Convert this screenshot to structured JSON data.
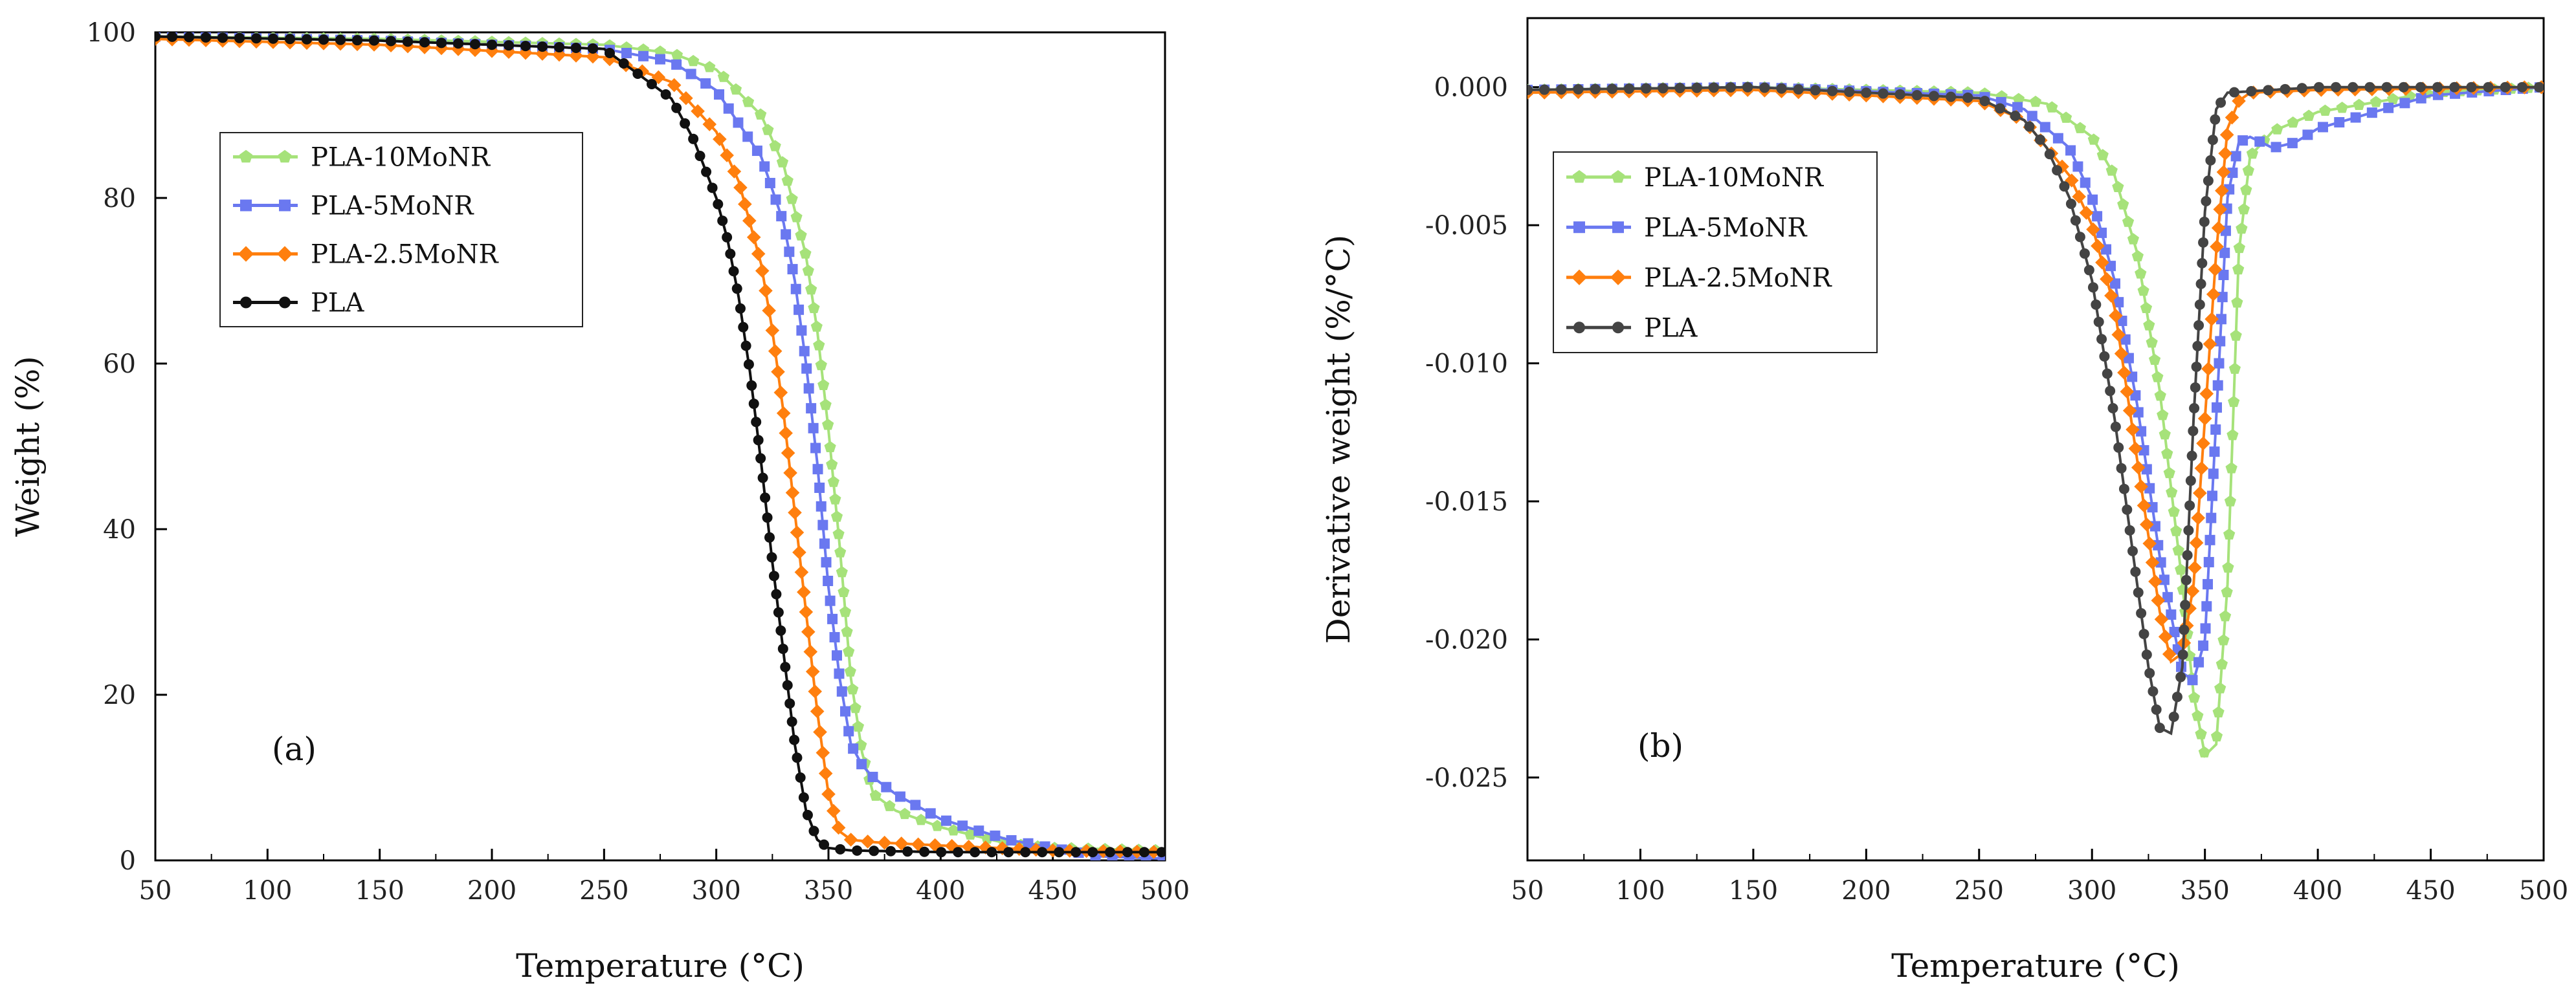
{
  "chart_data": [
    {
      "type": "line",
      "panel_label": "(a)",
      "xlabel": "Temperature (°C)",
      "ylabel": "Weight (%)",
      "xlim": [
        50,
        500
      ],
      "ylim": [
        0,
        100
      ],
      "xticks": [
        50,
        100,
        150,
        200,
        250,
        300,
        350,
        400,
        450,
        500
      ],
      "yticks": [
        0,
        20,
        40,
        60,
        80,
        100
      ],
      "ytick_labels": [
        "0",
        "20",
        "40",
        "60",
        "80",
        "100"
      ],
      "legend_position": "upper-left",
      "series": [
        {
          "name": "PLA-10MoNR",
          "color": "#a6e27a",
          "marker": "pentagon",
          "x": [
            50,
            150,
            250,
            280,
            300,
            320,
            330,
            340,
            345,
            350,
            355,
            360,
            365,
            370,
            380,
            400,
            430,
            450,
            500
          ],
          "y": [
            99.5,
            99.2,
            98.5,
            97.5,
            95.5,
            90,
            84,
            73,
            64,
            52,
            38,
            22,
            13,
            8,
            6,
            4,
            2,
            1.5,
            1.2
          ]
        },
        {
          "name": "PLA-5MoNR",
          "color": "#6a78f0",
          "marker": "square",
          "x": [
            50,
            150,
            250,
            280,
            300,
            320,
            330,
            335,
            340,
            345,
            350,
            355,
            360,
            365,
            370,
            380,
            400,
            430,
            450,
            470,
            500
          ],
          "y": [
            99.5,
            99,
            98,
            96.5,
            93,
            85,
            77,
            70,
            60,
            48,
            33,
            22,
            14,
            11.5,
            10,
            8,
            5,
            2.5,
            1.5,
            0.5,
            0.2
          ]
        },
        {
          "name": "PLA-2.5MoNR",
          "color": "#ff7f0e",
          "marker": "diamond",
          "x": [
            50,
            150,
            250,
            280,
            300,
            310,
            320,
            325,
            330,
            335,
            340,
            345,
            350,
            355,
            360,
            370,
            400,
            450,
            500
          ],
          "y": [
            99.2,
            98.5,
            97,
            94,
            88,
            82,
            72,
            64,
            54,
            42,
            30,
            18,
            8,
            3.5,
            2.5,
            2.2,
            1.8,
            1.2,
            1
          ]
        },
        {
          "name": "PLA",
          "color": "#111111",
          "marker": "circle",
          "x": [
            50,
            150,
            250,
            280,
            290,
            300,
            305,
            310,
            315,
            320,
            325,
            330,
            335,
            340,
            345,
            350,
            360,
            400,
            500
          ],
          "y": [
            99.5,
            99,
            98,
            92,
            87,
            80,
            75,
            68,
            59,
            48,
            36,
            25,
            14,
            6,
            2.5,
            1.5,
            1.2,
            1,
            1
          ]
        }
      ]
    },
    {
      "type": "line",
      "panel_label": "(b)",
      "xlabel": "Temperature (°C)",
      "ylabel": "Derivative weight (%/°C)",
      "xlim": [
        50,
        500
      ],
      "ylim": [
        -0.028,
        0.0025
      ],
      "xticks": [
        50,
        100,
        150,
        200,
        250,
        300,
        350,
        400,
        450,
        500
      ],
      "yticks": [
        0,
        -0.005,
        -0.01,
        -0.015,
        -0.02,
        -0.025
      ],
      "ytick_labels": [
        "0.000",
        "-0.005",
        "-0.010",
        "-0.015",
        "-0.020",
        "-0.025"
      ],
      "legend_position": "upper-left",
      "series": [
        {
          "name": "PLA-10MoNR",
          "color": "#a6e27a",
          "marker": "pentagon",
          "x": [
            50,
            150,
            250,
            280,
            300,
            310,
            320,
            330,
            340,
            345,
            350,
            355,
            360,
            365,
            370,
            380,
            400,
            450,
            500
          ],
          "y": [
            -0.0001,
            0,
            -0.0002,
            -0.0006,
            -0.0018,
            -0.0032,
            -0.006,
            -0.011,
            -0.018,
            -0.022,
            -0.0242,
            -0.0238,
            -0.018,
            -0.006,
            -0.0025,
            -0.0016,
            -0.0009,
            -0.0002,
            0
          ]
        },
        {
          "name": "PLA-5MoNR",
          "color": "#6a78f0",
          "marker": "square",
          "x": [
            50,
            150,
            250,
            270,
            290,
            300,
            310,
            320,
            330,
            340,
            345,
            350,
            355,
            360,
            365,
            370,
            380,
            390,
            400,
            450,
            500
          ],
          "y": [
            -0.0001,
            0,
            -0.0003,
            -0.0008,
            -0.0022,
            -0.004,
            -0.007,
            -0.0115,
            -0.017,
            -0.0212,
            -0.0215,
            -0.02,
            -0.012,
            -0.004,
            -0.002,
            -0.0018,
            -0.0022,
            -0.002,
            -0.0015,
            -0.0003,
            0
          ]
        },
        {
          "name": "PLA-2.5MoNR",
          "color": "#ff7f0e",
          "marker": "diamond",
          "x": [
            50,
            150,
            250,
            270,
            290,
            300,
            310,
            320,
            330,
            335,
            340,
            345,
            350,
            355,
            360,
            365,
            370,
            400,
            500
          ],
          "y": [
            -0.0002,
            -0.0001,
            -0.0005,
            -0.0012,
            -0.0032,
            -0.005,
            -0.008,
            -0.0135,
            -0.019,
            -0.0208,
            -0.0205,
            -0.018,
            -0.012,
            -0.006,
            -0.0015,
            -0.0005,
            -0.0002,
            -0.0001,
            0
          ]
        },
        {
          "name": "PLA",
          "color": "#444444",
          "marker": "circle",
          "x": [
            50,
            150,
            250,
            270,
            280,
            290,
            300,
            310,
            320,
            325,
            330,
            335,
            340,
            345,
            350,
            355,
            360,
            400,
            500
          ],
          "y": [
            -0.0001,
            0,
            -0.0004,
            -0.0012,
            -0.0022,
            -0.004,
            -0.007,
            -0.012,
            -0.018,
            -0.021,
            -0.0232,
            -0.0234,
            -0.021,
            -0.012,
            -0.0045,
            -0.0008,
            -0.0002,
            0,
            0
          ]
        }
      ]
    }
  ]
}
